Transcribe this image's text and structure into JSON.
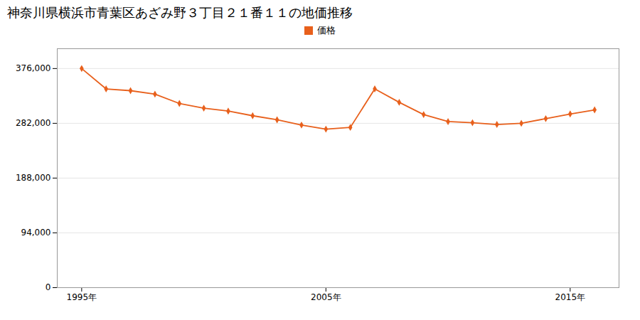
{
  "chart_data": {
    "type": "line",
    "title": "神奈川県横浜市青葉区あざみ野３丁目２１番１１の地価推移",
    "x": [
      1995,
      1996,
      1997,
      1998,
      1999,
      2000,
      2001,
      2002,
      2003,
      2004,
      2005,
      2006,
      2007,
      2008,
      2009,
      2010,
      2011,
      2012,
      2013,
      2014,
      2015,
      2016
    ],
    "series": [
      {
        "name": "価格",
        "color": "#e8601c",
        "marker": "diamond",
        "values": [
          376000,
          341000,
          338000,
          332000,
          316000,
          308000,
          303000,
          295000,
          288000,
          279000,
          272000,
          275000,
          341000,
          318000,
          297000,
          285000,
          283000,
          280000,
          282000,
          290000,
          298000,
          305000
        ]
      }
    ],
    "xlim": [
      1994,
      2017
    ],
    "xticks": [
      {
        "value": 1995,
        "label": "1995年"
      },
      {
        "value": 2005,
        "label": "2005年"
      },
      {
        "value": 2015,
        "label": "2015年"
      }
    ],
    "ylim": [
      0,
      410000
    ],
    "yticks": [
      0,
      {
        "value": 94000,
        "label": "94,000"
      },
      {
        "value": 188000,
        "label": "188,000"
      },
      {
        "value": 282000,
        "label": "282,000"
      },
      {
        "value": 376000,
        "label": "376,000"
      }
    ],
    "grid": "y",
    "legend": "top"
  }
}
